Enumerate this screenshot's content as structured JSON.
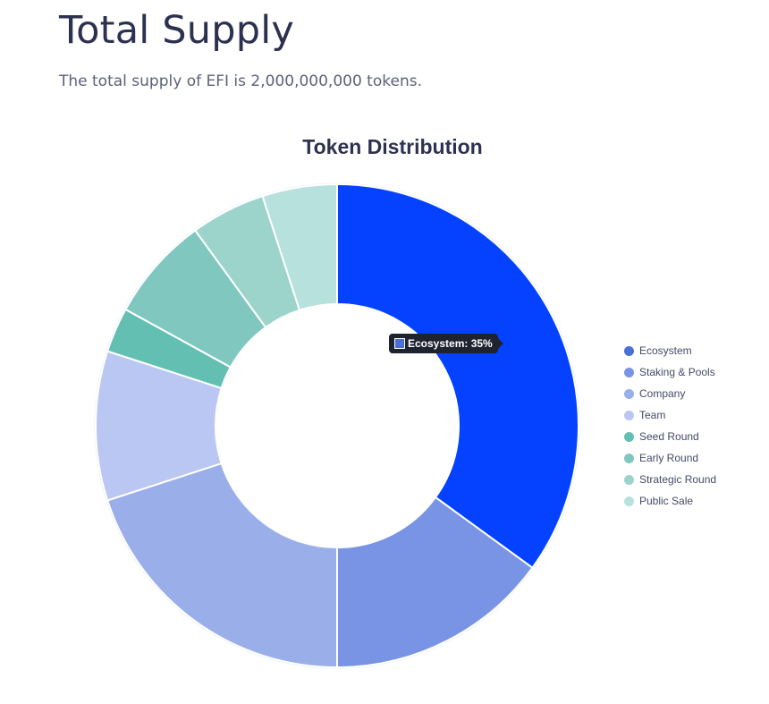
{
  "page": {
    "title": "Total Supply",
    "subtitle": "The total supply of EFI is 2,000,000,000 tokens."
  },
  "chart_data": {
    "type": "pie",
    "variant": "doughnut",
    "title": "Token Distribution",
    "legend_position": "right",
    "categories": [
      "Ecosystem",
      "Staking & Pools",
      "Company",
      "Team",
      "Seed Round",
      "Early Round",
      "Strategic Round",
      "Public Sale"
    ],
    "values": [
      35,
      15,
      20,
      10,
      3,
      7,
      5,
      5
    ],
    "unit": "%",
    "colors": [
      "#0542ff",
      "#7994e4",
      "#9aaeea",
      "#bac7f2",
      "#62bfb2",
      "#80c8bf",
      "#9cd4cc",
      "#b7e1dc"
    ],
    "legend_colors": [
      "#4a6fd8",
      "#7994e4",
      "#9aaeea",
      "#bac7f2",
      "#62bfb2",
      "#80c8bf",
      "#9cd4cc",
      "#b7e1dc"
    ],
    "tooltip": {
      "label": "Ecosystem: 35%",
      "color": "#4a6fd8"
    }
  }
}
